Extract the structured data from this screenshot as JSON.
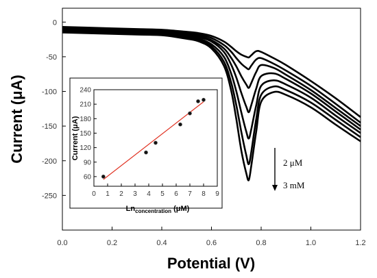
{
  "chart_data": [
    {
      "type": "line",
      "xlabel": "Potential (V)",
      "ylabel": "Current (μA)",
      "xlim": [
        0.0,
        1.2
      ],
      "ylim": [
        -300,
        20
      ],
      "x_ticks": [
        "0.0",
        "0.2",
        "0.4",
        "0.6",
        "0.8",
        "1.0",
        "1.2"
      ],
      "y_ticks": [
        "0",
        "-50",
        "-100",
        "-150",
        "-200",
        "-250"
      ],
      "x": [
        0.0,
        0.1,
        0.2,
        0.3,
        0.4,
        0.5,
        0.55,
        0.6,
        0.65,
        0.68,
        0.7,
        0.72,
        0.74,
        0.75,
        0.76,
        0.78,
        0.8,
        0.85,
        0.9,
        1.0,
        1.1,
        1.2
      ],
      "series": [
        {
          "values": [
            -7,
            -8,
            -9,
            -10,
            -11,
            -14,
            -16,
            -20,
            -28,
            -36,
            -42,
            -47,
            -50,
            -51,
            -48,
            -42,
            -43,
            -52,
            -62,
            -85,
            -110,
            -137
          ]
        },
        {
          "values": [
            -8,
            -9,
            -10,
            -11,
            -12,
            -16,
            -18,
            -23,
            -33,
            -43,
            -52,
            -60,
            -66,
            -68,
            -63,
            -54,
            -52,
            -60,
            -70,
            -92,
            -118,
            -145
          ]
        },
        {
          "values": [
            -9,
            -10,
            -11,
            -12,
            -13,
            -18,
            -20,
            -26,
            -38,
            -52,
            -64,
            -78,
            -90,
            -95,
            -88,
            -72,
            -62,
            -66,
            -76,
            -98,
            -124,
            -150
          ]
        },
        {
          "values": [
            -10,
            -11,
            -12,
            -13,
            -14,
            -19,
            -22,
            -28,
            -43,
            -62,
            -80,
            -102,
            -122,
            -130,
            -120,
            -96,
            -78,
            -74,
            -82,
            -103,
            -129,
            -155
          ]
        },
        {
          "values": [
            -11,
            -12,
            -13,
            -14,
            -15,
            -20,
            -24,
            -32,
            -50,
            -75,
            -100,
            -130,
            -158,
            -168,
            -155,
            -120,
            -92,
            -84,
            -90,
            -109,
            -135,
            -160
          ]
        },
        {
          "values": [
            -13,
            -14,
            -15,
            -16,
            -17,
            -22,
            -26,
            -35,
            -57,
            -88,
            -120,
            -158,
            -192,
            -205,
            -188,
            -140,
            -105,
            -93,
            -98,
            -116,
            -141,
            -166
          ]
        },
        {
          "values": [
            -15,
            -16,
            -17,
            -18,
            -19,
            -24,
            -28,
            -38,
            -63,
            -100,
            -140,
            -185,
            -218,
            -228,
            -208,
            -158,
            -115,
            -101,
            -105,
            -123,
            -148,
            -172
          ]
        }
      ],
      "annotations": [
        "2 μM",
        "3 mM"
      ]
    },
    {
      "type": "scatter",
      "xlabel_main": "Ln",
      "xlabel_sub": "concentration",
      "xlabel_unit": " (μM)",
      "ylabel": "Current (μA)",
      "xlim": [
        0,
        9
      ],
      "ylim": [
        40,
        240
      ],
      "x_ticks": [
        "0",
        "1",
        "2",
        "3",
        "4",
        "5",
        "6",
        "7",
        "8",
        "9"
      ],
      "y_ticks": [
        "60",
        "90",
        "120",
        "150",
        "180",
        "210",
        "240"
      ],
      "points": [
        {
          "x": 0.69,
          "y": 60
        },
        {
          "x": 3.8,
          "y": 110
        },
        {
          "x": 4.5,
          "y": 130
        },
        {
          "x": 6.3,
          "y": 168
        },
        {
          "x": 7.0,
          "y": 191
        },
        {
          "x": 7.6,
          "y": 216
        },
        {
          "x": 8.0,
          "y": 219
        }
      ],
      "fit": {
        "x1": 0.69,
        "y1": 54,
        "x2": 8.0,
        "y2": 215,
        "color": "#e03020"
      }
    }
  ]
}
